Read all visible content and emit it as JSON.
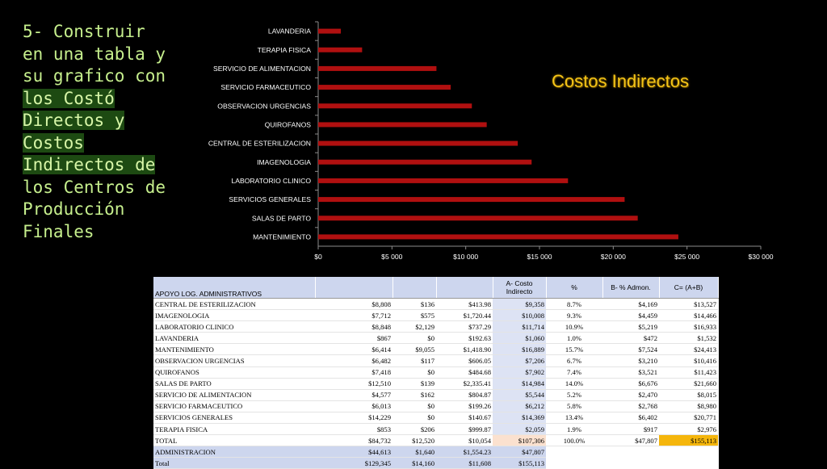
{
  "slide": {
    "title_lines": [
      "5- Construir",
      "en una tabla y",
      "su grafico con",
      "los Costó",
      "Directos y",
      "Costos",
      "Indirectos de",
      "los Centros de",
      "Producción",
      "Finales"
    ],
    "chart_title": "Costos Indirectos"
  },
  "colors": {
    "bar": "#b01010",
    "axis": "#8c8c8c",
    "label": "#ffffff",
    "chart_title": "#f5c518",
    "table_header": "#cdd6ee",
    "highlight_total": "#f5b60c"
  },
  "chart_data": {
    "type": "bar",
    "orientation": "horizontal",
    "title": "Costos Indirectos",
    "categories": [
      "LAVANDERIA",
      "TERAPIA FISICA",
      "SERVICIO DE ALIMENTACION",
      "SERVICIO FARMACEUTICO",
      "OBSERVACION URGENCIAS",
      "QUIROFANOS",
      "CENTRAL DE ESTERILIZACION",
      "IMAGENOLOGIA",
      "LABORATORIO CLINICO",
      "SERVICIOS GENERALES",
      "SALAS DE PARTO",
      "MANTENIMIENTO"
    ],
    "values": [
      1532,
      2976,
      8015,
      8980,
      10416,
      11423,
      13527,
      14466,
      16933,
      20771,
      21660,
      24413
    ],
    "xlim": [
      0,
      30000
    ],
    "xticks": [
      0,
      5000,
      10000,
      15000,
      20000,
      25000,
      30000
    ],
    "xtick_labels": [
      "$0",
      "$5 000",
      "$10 000",
      "$15 000",
      "$20 000",
      "$25 000",
      "$30 000"
    ],
    "legend": "none",
    "grid": false
  },
  "table": {
    "headers": [
      "APOYO LOG. ADMINISTRATIVOS",
      "",
      "",
      "",
      "A- Costo Indirecto",
      "%",
      "B- % Admon.",
      "C= (A+B)"
    ],
    "rows": [
      [
        "CENTRAL DE ESTERILIZACION",
        "$8,808",
        "$136",
        "$413.98",
        "$9,358",
        "8.7%",
        "$4,169",
        "$13,527"
      ],
      [
        "IMAGENOLOGIA",
        "$7,712",
        "$575",
        "$1,720.44",
        "$10,008",
        "9.3%",
        "$4,459",
        "$14,466"
      ],
      [
        "LABORATORIO CLINICO",
        "$8,848",
        "$2,129",
        "$737.29",
        "$11,714",
        "10.9%",
        "$5,219",
        "$16,933"
      ],
      [
        "LAVANDERIA",
        "$867",
        "$0",
        "$192.63",
        "$1,060",
        "1.0%",
        "$472",
        "$1,532"
      ],
      [
        "MANTENIMIENTO",
        "$6,414",
        "$9,055",
        "$1,418.90",
        "$16,889",
        "15.7%",
        "$7,524",
        "$24,413"
      ],
      [
        "OBSERVACION URGENCIAS",
        "$6,482",
        "$117",
        "$606.05",
        "$7,206",
        "6.7%",
        "$3,210",
        "$10,416"
      ],
      [
        "QUIROFANOS",
        "$7,418",
        "$0",
        "$484.68",
        "$7,902",
        "7.4%",
        "$3,521",
        "$11,423"
      ],
      [
        "SALAS DE PARTO",
        "$12,510",
        "$139",
        "$2,335.41",
        "$14,984",
        "14.0%",
        "$6,676",
        "$21,660"
      ],
      [
        "SERVICIO DE ALIMENTACION",
        "$4,577",
        "$162",
        "$804.87",
        "$5,544",
        "5.2%",
        "$2,470",
        "$8,015"
      ],
      [
        "SERVICIO FARMACEUTICO",
        "$6,013",
        "$0",
        "$199.26",
        "$6,212",
        "5.8%",
        "$2,768",
        "$8,980"
      ],
      [
        "SERVICIOS GENERALES",
        "$14,229",
        "$0",
        "$140.67",
        "$14,369",
        "13.4%",
        "$6,402",
        "$20,771"
      ],
      [
        "TERAPIA FISICA",
        "$853",
        "$206",
        "$999.87",
        "$2,059",
        "1.9%",
        "$917",
        "$2,976"
      ]
    ],
    "total_row": [
      "TOTAL",
      "$84,732",
      "$12,520",
      "$10,054",
      "$107,306",
      "100.0%",
      "$47,807",
      "$155,113"
    ],
    "admin_row": [
      "ADMINISTRACION",
      "$44,613",
      "$1,640",
      "$1,554.23",
      "$47,807"
    ],
    "grand_row": [
      "Total",
      "$129,345",
      "$14,160",
      "$11,608",
      "$155,113"
    ]
  }
}
